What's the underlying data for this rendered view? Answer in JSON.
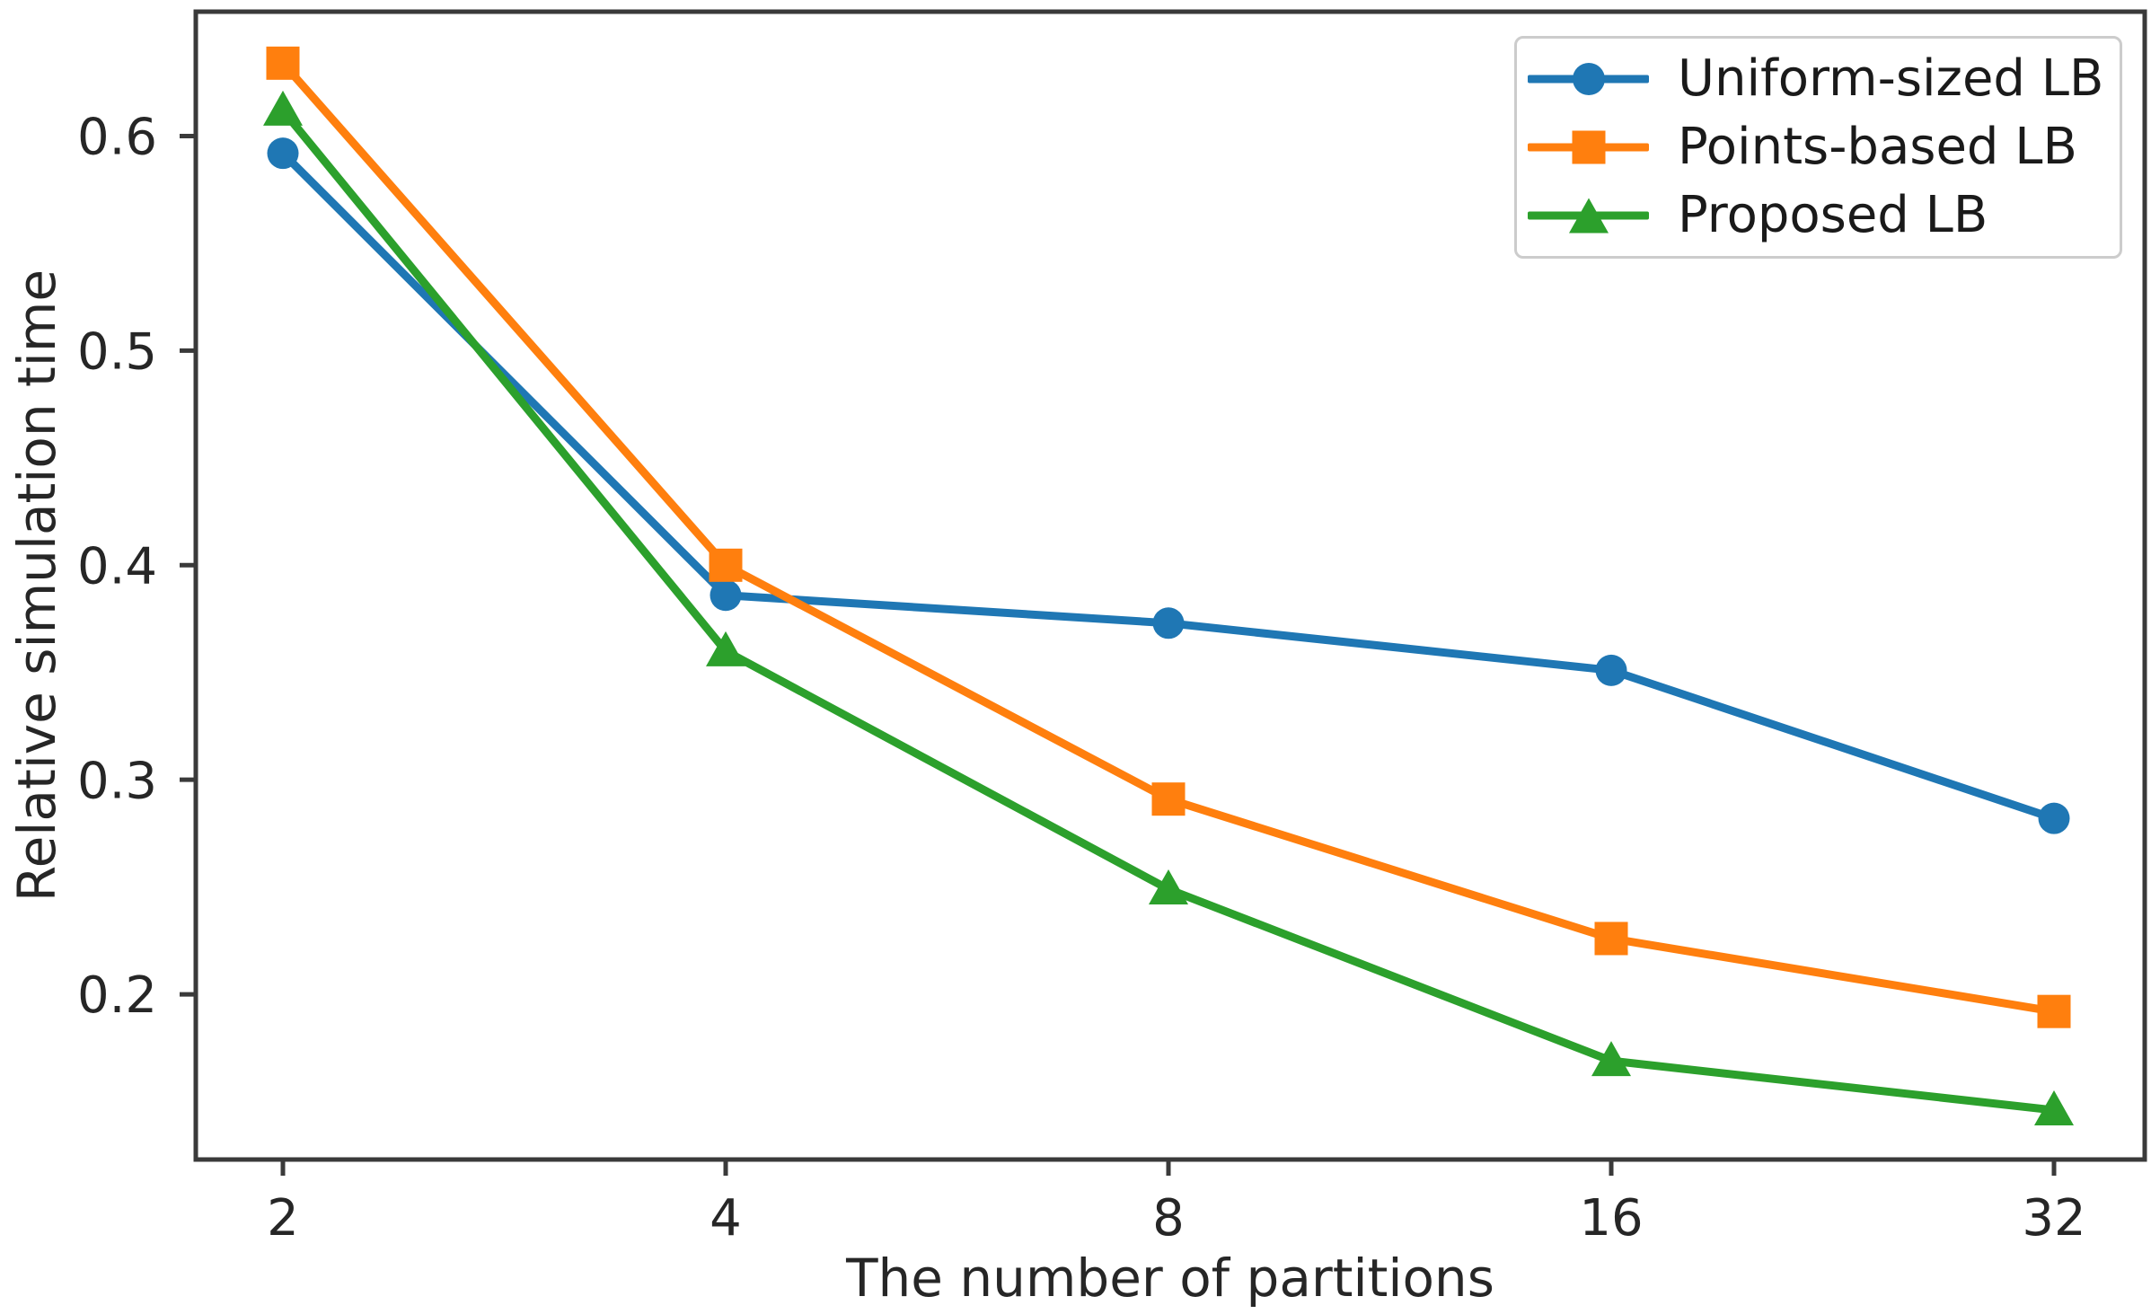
{
  "figure": {
    "background": "#ffffff"
  },
  "chart_data": {
    "type": "line",
    "title": "",
    "xlabel": "The number of partitions",
    "ylabel": "Relative simulation time",
    "x_axis_type": "log2-categorical",
    "categories": [
      "2",
      "4",
      "8",
      "16",
      "32"
    ],
    "yticks": [
      "0.2",
      "0.3",
      "0.4",
      "0.5",
      "0.6"
    ],
    "ytick_values": [
      0.2,
      0.3,
      0.4,
      0.5,
      0.6
    ],
    "ylim": [
      0.123,
      0.658
    ],
    "grid": false,
    "legend_position": "upper right",
    "series": [
      {
        "name": "Uniform-sized LB",
        "marker": "circle",
        "color": "#1f77b4",
        "values": [
          0.592,
          0.386,
          0.373,
          0.351,
          0.282
        ]
      },
      {
        "name": "Points-based LB",
        "marker": "square",
        "color": "#ff7f0e",
        "values": [
          0.634,
          0.4,
          0.291,
          0.226,
          0.192
        ]
      },
      {
        "name": "Proposed LB",
        "marker": "triangle",
        "color": "#2ca02c",
        "values": [
          0.612,
          0.36,
          0.249,
          0.169,
          0.146
        ]
      }
    ],
    "colors": {
      "axis": "#3a3a3a",
      "text": "#262626",
      "legend_border": "#cccccc"
    }
  }
}
